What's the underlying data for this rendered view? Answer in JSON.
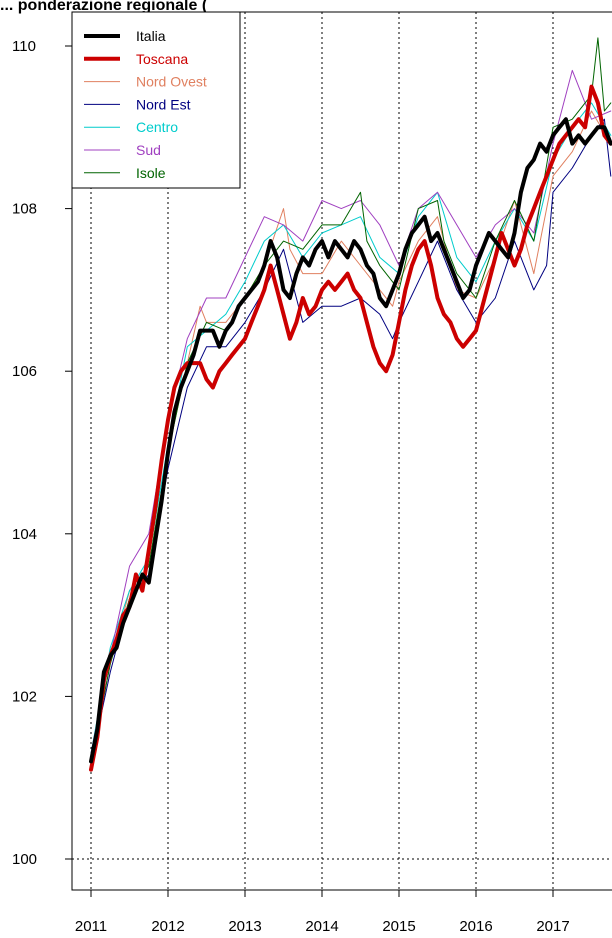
{
  "chart_data": {
    "type": "line",
    "title": "... ponderazione regionale (",
    "xlabel": "",
    "ylabel": "",
    "x_ticks": [
      2011,
      2012,
      2013,
      2014,
      2015,
      2016,
      2017
    ],
    "y_ticks": [
      100,
      102,
      104,
      106,
      108,
      110
    ],
    "xlim": [
      2011.0,
      2017.75
    ],
    "ylim": [
      99.6,
      110.2
    ],
    "grid": "dotted vertical lines at years, dotted horizontal line at 100",
    "legend_position": "top-left",
    "series": [
      {
        "name": "Italia",
        "color": "#000000",
        "width": 4,
        "x": [
          2011.0,
          2011.083,
          2011.167,
          2011.25,
          2011.333,
          2011.417,
          2011.5,
          2011.583,
          2011.667,
          2011.75,
          2011.833,
          2011.917,
          2012.0,
          2012.083,
          2012.167,
          2012.25,
          2012.333,
          2012.417,
          2012.5,
          2012.583,
          2012.667,
          2012.75,
          2012.833,
          2012.917,
          2013.0,
          2013.083,
          2013.167,
          2013.25,
          2013.333,
          2013.417,
          2013.5,
          2013.583,
          2013.667,
          2013.75,
          2013.833,
          2013.917,
          2014.0,
          2014.083,
          2014.167,
          2014.25,
          2014.333,
          2014.417,
          2014.5,
          2014.583,
          2014.667,
          2014.75,
          2014.833,
          2014.917,
          2015.0,
          2015.083,
          2015.167,
          2015.25,
          2015.333,
          2015.417,
          2015.5,
          2015.583,
          2015.667,
          2015.75,
          2015.833,
          2015.917,
          2016.0,
          2016.083,
          2016.167,
          2016.25,
          2016.333,
          2016.417,
          2016.5,
          2016.583,
          2016.667,
          2016.75,
          2016.833,
          2016.917,
          2017.0,
          2017.083,
          2017.167,
          2017.25,
          2017.333,
          2017.417,
          2017.5,
          2017.583,
          2017.667,
          2017.75
        ],
        "y": [
          101.2,
          101.6,
          102.3,
          102.5,
          102.6,
          102.9,
          103.1,
          103.3,
          103.5,
          103.4,
          103.9,
          104.4,
          105.0,
          105.5,
          105.8,
          106.0,
          106.2,
          106.5,
          106.5,
          106.5,
          106.3,
          106.5,
          106.6,
          106.8,
          106.9,
          107.0,
          107.1,
          107.3,
          107.6,
          107.4,
          107.0,
          106.9,
          107.2,
          107.4,
          107.3,
          107.5,
          107.6,
          107.4,
          107.6,
          107.5,
          107.4,
          107.6,
          107.5,
          107.3,
          107.2,
          106.9,
          106.8,
          107.0,
          107.2,
          107.5,
          107.7,
          107.8,
          107.9,
          107.6,
          107.7,
          107.5,
          107.3,
          107.1,
          106.9,
          107.0,
          107.3,
          107.5,
          107.7,
          107.6,
          107.5,
          107.4,
          107.7,
          108.2,
          108.5,
          108.6,
          108.8,
          108.7,
          108.9,
          109.0,
          109.1,
          108.8,
          108.9,
          108.8,
          108.9,
          109.0,
          109.0,
          108.8
        ]
      },
      {
        "name": "Toscana",
        "color": "#cc0000",
        "width": 4,
        "x": [
          2011.0,
          2011.083,
          2011.167,
          2011.25,
          2011.333,
          2011.417,
          2011.5,
          2011.583,
          2011.667,
          2011.75,
          2011.833,
          2011.917,
          2012.0,
          2012.083,
          2012.167,
          2012.25,
          2012.333,
          2012.417,
          2012.5,
          2012.583,
          2012.667,
          2012.75,
          2012.833,
          2012.917,
          2013.0,
          2013.083,
          2013.167,
          2013.25,
          2013.333,
          2013.417,
          2013.5,
          2013.583,
          2013.667,
          2013.75,
          2013.833,
          2013.917,
          2014.0,
          2014.083,
          2014.167,
          2014.25,
          2014.333,
          2014.417,
          2014.5,
          2014.583,
          2014.667,
          2014.75,
          2014.833,
          2014.917,
          2015.0,
          2015.083,
          2015.167,
          2015.25,
          2015.333,
          2015.417,
          2015.5,
          2015.583,
          2015.667,
          2015.75,
          2015.833,
          2015.917,
          2016.0,
          2016.083,
          2016.167,
          2016.25,
          2016.333,
          2016.417,
          2016.5,
          2016.583,
          2016.667,
          2016.75,
          2016.833,
          2016.917,
          2017.0,
          2017.083,
          2017.167,
          2017.25,
          2017.333,
          2017.417,
          2017.5,
          2017.583,
          2017.667,
          2017.75
        ],
        "y": [
          101.1,
          101.5,
          102.2,
          102.5,
          102.7,
          103.0,
          103.1,
          103.5,
          103.3,
          103.8,
          104.3,
          104.9,
          105.4,
          105.8,
          106.0,
          106.1,
          106.1,
          106.1,
          105.9,
          105.8,
          106.0,
          106.1,
          106.2,
          106.3,
          106.4,
          106.6,
          106.8,
          107.0,
          107.3,
          107.0,
          106.7,
          106.4,
          106.6,
          106.9,
          106.7,
          106.8,
          107.0,
          107.1,
          107.0,
          107.1,
          107.2,
          107.0,
          106.9,
          106.6,
          106.3,
          106.1,
          106.0,
          106.2,
          106.6,
          107.0,
          107.3,
          107.5,
          107.6,
          107.3,
          106.9,
          106.7,
          106.6,
          106.4,
          106.3,
          106.4,
          106.5,
          106.8,
          107.1,
          107.4,
          107.7,
          107.5,
          107.3,
          107.5,
          107.8,
          108.0,
          108.2,
          108.4,
          108.6,
          108.8,
          108.9,
          109.0,
          109.1,
          109.0,
          109.5,
          109.3,
          108.9,
          108.8
        ]
      },
      {
        "name": "Nord Ovest",
        "color": "#e08060",
        "width": 1,
        "x": [
          2011.0,
          2011.25,
          2011.5,
          2011.75,
          2012.0,
          2012.25,
          2012.417,
          2012.5,
          2012.75,
          2013.0,
          2013.25,
          2013.5,
          2013.583,
          2013.75,
          2014.0,
          2014.25,
          2014.5,
          2014.75,
          2014.917,
          2015.0,
          2015.25,
          2015.5,
          2015.75,
          2016.0,
          2016.25,
          2016.5,
          2016.75,
          2017.0,
          2017.25,
          2017.5,
          2017.75
        ],
        "y": [
          101.2,
          102.4,
          103.3,
          103.6,
          105.0,
          106.1,
          106.8,
          106.6,
          106.6,
          106.9,
          107.3,
          108.0,
          107.5,
          107.2,
          107.2,
          107.6,
          107.3,
          107.0,
          106.8,
          107.1,
          107.6,
          107.9,
          107.0,
          106.9,
          107.4,
          108.1,
          107.2,
          108.4,
          108.7,
          109.2,
          108.8
        ]
      },
      {
        "name": "Nord Est",
        "color": "#000080",
        "width": 1,
        "x": [
          2011.0,
          2011.25,
          2011.5,
          2011.75,
          2012.0,
          2012.25,
          2012.5,
          2012.75,
          2013.0,
          2013.25,
          2013.5,
          2013.75,
          2014.0,
          2014.25,
          2014.5,
          2014.75,
          2014.917,
          2015.0,
          2015.25,
          2015.5,
          2015.75,
          2016.0,
          2016.25,
          2016.5,
          2016.75,
          2016.917,
          2017.0,
          2017.25,
          2017.5,
          2017.667,
          2017.75
        ],
        "y": [
          101.2,
          102.3,
          103.2,
          103.5,
          104.8,
          105.8,
          106.3,
          106.3,
          106.6,
          107.0,
          107.5,
          106.6,
          106.8,
          106.8,
          106.9,
          106.7,
          106.4,
          106.6,
          107.1,
          107.6,
          107.0,
          106.6,
          106.9,
          107.6,
          107.0,
          107.3,
          108.2,
          108.5,
          108.9,
          109.1,
          108.4
        ]
      },
      {
        "name": "Centro",
        "color": "#00cccc",
        "width": 1,
        "x": [
          2011.0,
          2011.25,
          2011.5,
          2011.75,
          2012.0,
          2012.25,
          2012.5,
          2012.75,
          2013.0,
          2013.25,
          2013.5,
          2013.75,
          2014.0,
          2014.25,
          2014.5,
          2014.75,
          2015.0,
          2015.25,
          2015.5,
          2015.75,
          2016.0,
          2016.25,
          2016.5,
          2016.75,
          2017.0,
          2017.25,
          2017.5,
          2017.75
        ],
        "y": [
          101.3,
          102.6,
          103.3,
          103.7,
          105.1,
          106.3,
          106.5,
          106.7,
          107.1,
          107.6,
          107.8,
          107.4,
          107.7,
          107.8,
          107.9,
          107.4,
          107.2,
          107.9,
          108.2,
          107.4,
          107.1,
          107.6,
          108.0,
          107.6,
          108.6,
          109.0,
          109.3,
          108.9
        ]
      },
      {
        "name": "Sud",
        "color": "#a040c0",
        "width": 1,
        "x": [
          2011.0,
          2011.25,
          2011.5,
          2011.75,
          2012.0,
          2012.25,
          2012.5,
          2012.75,
          2013.0,
          2013.25,
          2013.5,
          2013.75,
          2014.0,
          2014.25,
          2014.5,
          2014.75,
          2015.0,
          2015.25,
          2015.5,
          2015.75,
          2016.0,
          2016.25,
          2016.5,
          2016.75,
          2017.0,
          2017.25,
          2017.5,
          2017.75
        ],
        "y": [
          101.3,
          102.5,
          103.6,
          104.0,
          105.4,
          106.4,
          106.9,
          106.9,
          107.4,
          107.9,
          107.8,
          107.6,
          108.1,
          108.0,
          108.1,
          107.8,
          107.3,
          108.0,
          108.2,
          107.8,
          107.4,
          107.8,
          108.0,
          107.7,
          108.8,
          109.7,
          109.1,
          109.2
        ]
      },
      {
        "name": "Isole",
        "color": "#006400",
        "width": 1,
        "x": [
          2011.0,
          2011.25,
          2011.5,
          2011.75,
          2012.0,
          2012.25,
          2012.5,
          2012.75,
          2013.0,
          2013.25,
          2013.5,
          2013.75,
          2014.0,
          2014.25,
          2014.5,
          2014.583,
          2014.75,
          2015.0,
          2015.25,
          2015.5,
          2015.583,
          2015.75,
          2016.0,
          2016.25,
          2016.5,
          2016.75,
          2017.0,
          2017.25,
          2017.5,
          2017.583,
          2017.667,
          2017.75
        ],
        "y": [
          101.2,
          102.4,
          103.2,
          103.6,
          105.0,
          106.1,
          106.6,
          106.5,
          106.9,
          107.3,
          107.6,
          107.5,
          107.8,
          107.8,
          108.2,
          107.6,
          107.3,
          107.0,
          108.0,
          108.1,
          107.6,
          107.2,
          106.9,
          107.6,
          108.1,
          107.6,
          109.0,
          109.1,
          109.4,
          110.1,
          109.2,
          109.3
        ]
      }
    ]
  }
}
